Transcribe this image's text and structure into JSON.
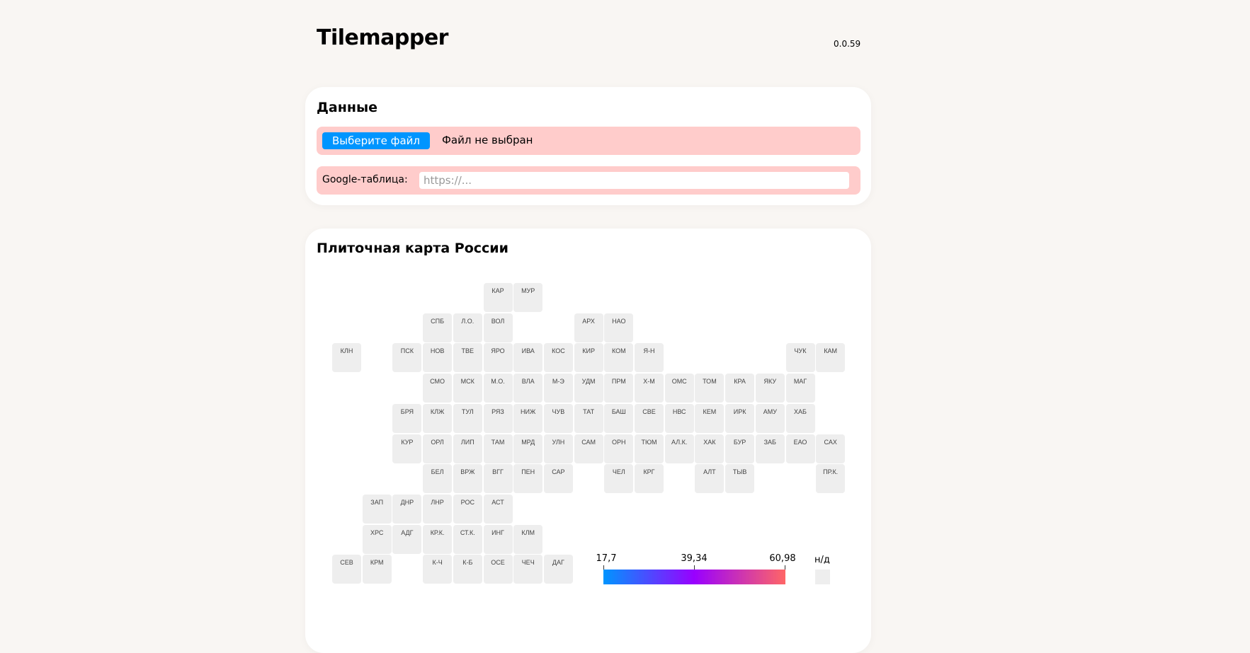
{
  "header": {
    "title": "Tilemapper",
    "version": "0.0.59"
  },
  "data_card": {
    "title": "Данные",
    "file_button": "Выберите файл",
    "file_status": "Файл не выбран",
    "google_label": "Google-таблица:",
    "google_placeholder": "https://...",
    "google_value": ""
  },
  "map_card": {
    "title": "Плиточная карта России",
    "tile_color": "#eeeeee",
    "grid": [
      [
        null,
        null,
        null,
        null,
        null,
        "КАР",
        "МУР"
      ],
      [
        null,
        null,
        null,
        "СПБ",
        "Л.О.",
        "ВОЛ",
        null,
        null,
        "АРХ",
        "НАО"
      ],
      [
        "КЛН",
        null,
        "ПСК",
        "НОВ",
        "ТВЕ",
        "ЯРО",
        "ИВА",
        "КОС",
        "КИР",
        "КОМ",
        "Я-Н",
        null,
        null,
        null,
        null,
        "ЧУК",
        "КАМ"
      ],
      [
        null,
        null,
        null,
        "СМО",
        "МСК",
        "М.О.",
        "ВЛА",
        "М-Э",
        "УДМ",
        "ПРМ",
        "Х-М",
        "ОМС",
        "ТОМ",
        "КРА",
        "ЯКУ",
        "МАГ"
      ],
      [
        null,
        null,
        "БРЯ",
        "КЛЖ",
        "ТУЛ",
        "РЯЗ",
        "НИЖ",
        "ЧУВ",
        "ТАТ",
        "БАШ",
        "СВЕ",
        "НВС",
        "КЕМ",
        "ИРК",
        "АМУ",
        "ХАБ"
      ],
      [
        null,
        null,
        "КУР",
        "ОРЛ",
        "ЛИП",
        "ТАМ",
        "МРД",
        "УЛН",
        "САМ",
        "ОРН",
        "ТЮМ",
        "АЛ.К.",
        "ХАК",
        "БУР",
        "ЗАБ",
        "ЕАО",
        "САХ"
      ],
      [
        null,
        null,
        null,
        "БЕЛ",
        "ВРЖ",
        "ВГГ",
        "ПЕН",
        "САР",
        null,
        "ЧЕЛ",
        "КРГ",
        null,
        "АЛТ",
        "ТЫВ",
        null,
        null,
        "ПР.К."
      ],
      [
        null,
        "ЗАП",
        "ДНР",
        "ЛНР",
        "РОС",
        "АСТ"
      ],
      [
        null,
        "ХРС",
        "АДГ",
        "КР.К.",
        "СТ.К.",
        "ИНГ",
        "КЛМ"
      ],
      [
        "СЕВ",
        "КРМ",
        null,
        "К-Ч",
        "К-Б",
        "ОСЕ",
        "ЧЕЧ",
        "ДАГ"
      ]
    ],
    "legend": {
      "min": "17,7",
      "mid": "39,34",
      "max": "60,98",
      "na_label": "н/д",
      "gradient_colors": [
        "#0095ff",
        "#9900ff",
        "#ff6666"
      ],
      "na_color": "#eeeeee"
    }
  }
}
